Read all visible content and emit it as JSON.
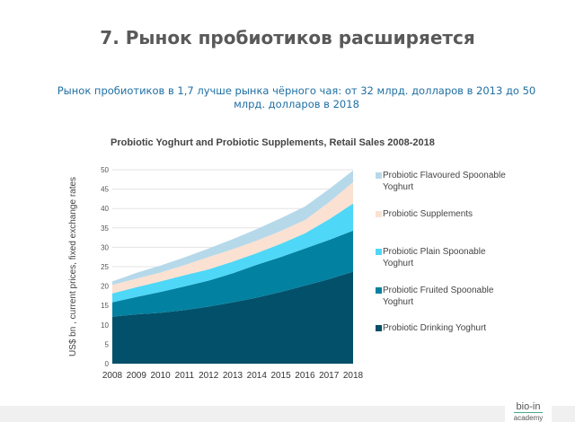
{
  "page": {
    "title": "7. Рынок пробиотиков расширяется",
    "subtitle": "Рынок пробиотиков в 1,7 лучше рынка чёрного чая: от 32 млрд. долларов в 2013 до 50 млрд. долларов в 2018",
    "logo_top": "bio-in",
    "logo_bottom": "academy"
  },
  "chart_data": {
    "type": "area",
    "stacked": true,
    "title": "Probiotic Yoghurt and Probiotic Supplements, Retail Sales 2008-2018",
    "xlabel": "",
    "ylabel": "US$ bn , current prices, fixed exchange rates",
    "x": [
      "2008",
      "2009",
      "2010",
      "2011",
      "2012",
      "2013",
      "2014",
      "2015",
      "2016",
      "2017",
      "2018"
    ],
    "ylim": [
      0,
      50
    ],
    "yticks": [
      "0",
      "5",
      "10",
      "15",
      "20",
      "25",
      "30",
      "35",
      "40",
      "45",
      "50"
    ],
    "grid": true,
    "legend_position": "right",
    "series": [
      {
        "name": "Probiotic Drinking Yoghurt",
        "color": "#03506a",
        "values": [
          12.1,
          12.7,
          13.1,
          13.8,
          14.7,
          15.8,
          17.0,
          18.5,
          20.1,
          21.8,
          23.7
        ]
      },
      {
        "name": "Probiotic Fruited Spoonable Yoghurt",
        "color": "#0381a0",
        "values": [
          3.7,
          4.5,
          5.4,
          6.1,
          6.7,
          7.5,
          8.5,
          9.0,
          9.6,
          10.1,
          10.6
        ]
      },
      {
        "name": "Probiotic Plain Spoonable Yoghurt",
        "color": "#4fd7f7",
        "values": [
          2.3,
          2.5,
          2.7,
          2.9,
          2.9,
          3.0,
          3.0,
          3.4,
          3.9,
          5.3,
          7.0
        ]
      },
      {
        "name": "Probiotic Supplements",
        "color": "#fbe1d2",
        "values": [
          2.2,
          2.2,
          2.3,
          2.6,
          3.2,
          3.2,
          3.2,
          3.3,
          3.4,
          4.4,
          5.5
        ]
      },
      {
        "name": "Probiotic Flavoured Spoonable Yoghurt",
        "color": "#b6d9ea",
        "values": [
          0.9,
          1.5,
          1.8,
          2.0,
          2.2,
          2.6,
          3.0,
          3.3,
          3.5,
          3.4,
          3.0
        ]
      }
    ]
  }
}
